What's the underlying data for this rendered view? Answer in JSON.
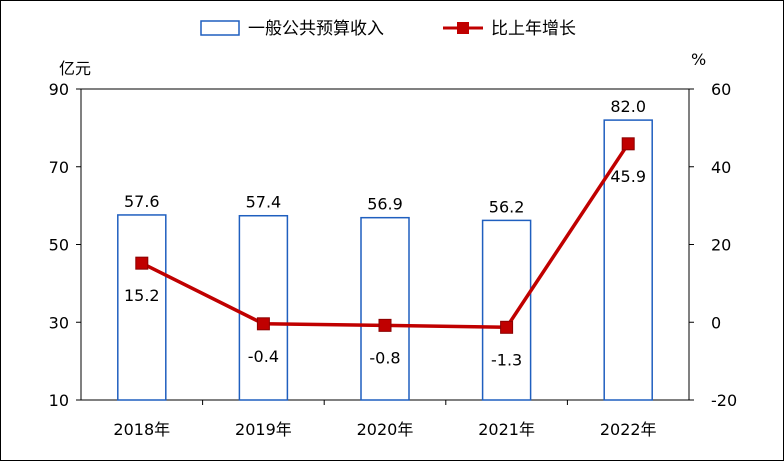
{
  "chart_data": {
    "type": "bar",
    "categories": [
      "2018年",
      "2019年",
      "2020年",
      "2021年",
      "2022年"
    ],
    "series": [
      {
        "name": "一般公共预算收入",
        "type": "bar",
        "axis": "left",
        "values": [
          57.6,
          57.4,
          56.9,
          56.2,
          82.0
        ],
        "labels": [
          "57.6",
          "57.4",
          "56.9",
          "56.2",
          "82.0"
        ],
        "color": "#1f5fbf"
      },
      {
        "name": "比上年增长",
        "type": "line",
        "axis": "right",
        "values": [
          15.2,
          -0.4,
          -0.8,
          -1.3,
          45.9
        ],
        "labels": [
          "15.2",
          "-0.4",
          "-0.8",
          "-1.3",
          "45.9"
        ],
        "color": "#c00000"
      }
    ],
    "ylabel_left": "亿元",
    "ylabel_right": "%",
    "ylim_left": [
      10,
      90
    ],
    "yticks_left": [
      10,
      30,
      50,
      70,
      90
    ],
    "ylim_right": [
      -20,
      60
    ],
    "yticks_right": [
      -20,
      0,
      20,
      40,
      60
    ],
    "legend_position": "top-center",
    "grid": false
  }
}
